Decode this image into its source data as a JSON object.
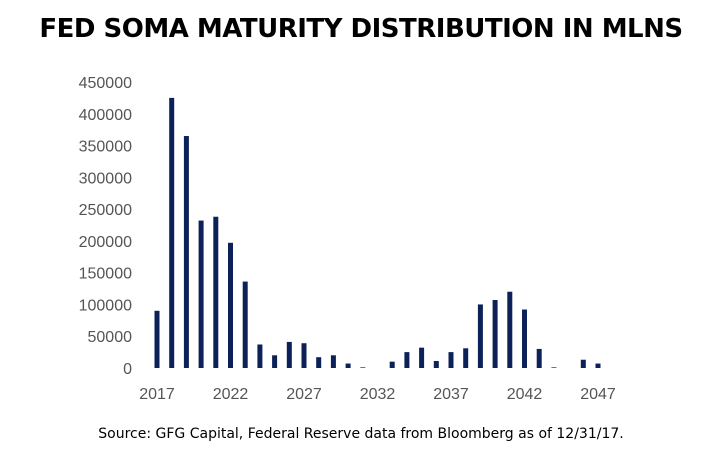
{
  "title": "FED SOMA MATURITY DISTRIBUTION IN MLNS",
  "source": "Source: GFG Capital, Federal Reserve data from Bloomberg as of 12/31/17.",
  "colors": {
    "bar": "#0d2159",
    "tick_text": "#555555"
  },
  "chart_data": {
    "type": "bar",
    "title": "FED SOMA MATURITY DISTRIBUTION IN MLNS",
    "xlabel": "",
    "ylabel": "",
    "ylim": [
      0,
      450000
    ],
    "grid": false,
    "legend": "none",
    "yticks": [
      0,
      50000,
      100000,
      150000,
      200000,
      250000,
      300000,
      350000,
      400000,
      450000
    ],
    "xticks": [
      2017,
      2022,
      2027,
      2032,
      2037,
      2042,
      2047
    ],
    "categories": [
      2017,
      2018,
      2019,
      2020,
      2021,
      2022,
      2023,
      2024,
      2025,
      2026,
      2027,
      2028,
      2029,
      2030,
      2031,
      2032,
      2033,
      2034,
      2035,
      2036,
      2037,
      2038,
      2039,
      2040,
      2041,
      2042,
      2043,
      2044,
      2045,
      2046,
      2047
    ],
    "values": [
      90000,
      425000,
      365000,
      232000,
      238000,
      197000,
      136000,
      37000,
      20000,
      41000,
      39000,
      17000,
      20000,
      7000,
      1000,
      0,
      10000,
      25000,
      32000,
      11000,
      25000,
      31000,
      100000,
      107000,
      120000,
      92000,
      30000,
      1000,
      0,
      13000,
      7000
    ]
  }
}
